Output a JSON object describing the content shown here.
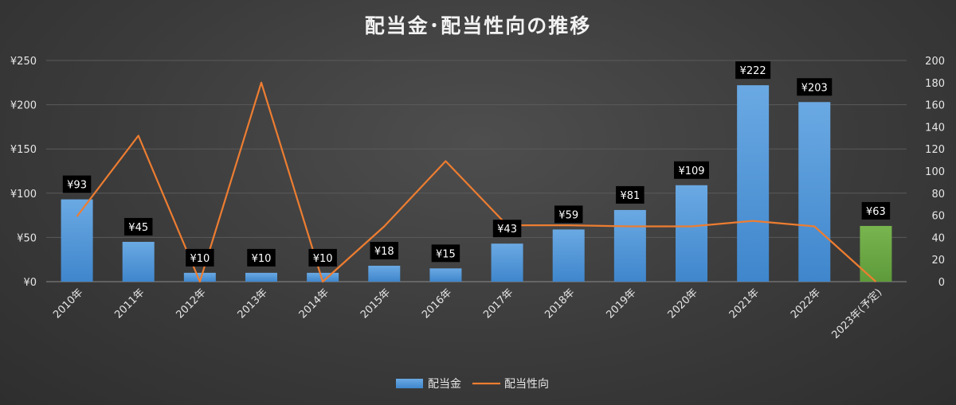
{
  "chart_data": {
    "type": "bar",
    "title": "配当金･配当性向の推移",
    "categories": [
      "2010年",
      "2011年",
      "2012年",
      "2013年",
      "2014年",
      "2015年",
      "2016年",
      "2017年",
      "2018年",
      "2019年",
      "2020年",
      "2021年",
      "2022年",
      "2023年(予定)"
    ],
    "series": [
      {
        "name": "配当金",
        "type": "bar",
        "axis": "left",
        "values": [
          93,
          45,
          10,
          10,
          10,
          18,
          15,
          43,
          59,
          81,
          109,
          222,
          203,
          63
        ],
        "data_labels": [
          "¥93",
          "¥45",
          "¥10",
          "¥10",
          "¥10",
          "¥18",
          "¥15",
          "¥43",
          "¥59",
          "¥81",
          "¥109",
          "¥222",
          "¥203",
          "¥63"
        ],
        "color": "#5b9bd5",
        "highlight_color": "#70ad47",
        "highlight_index": 13
      },
      {
        "name": "配当性向",
        "type": "line",
        "axis": "right",
        "values": [
          59,
          132,
          0,
          180,
          0,
          50,
          109,
          51,
          51,
          50,
          50,
          55,
          50,
          0
        ],
        "color": "#ed7d31"
      }
    ],
    "y_left": {
      "ylim": [
        0,
        250
      ],
      "ticks": [
        0,
        50,
        100,
        150,
        200,
        250
      ],
      "tick_labels": [
        "¥0",
        "¥50",
        "¥100",
        "¥150",
        "¥200",
        "¥250"
      ]
    },
    "y_right": {
      "ylim": [
        0,
        200
      ],
      "ticks": [
        0,
        20,
        40,
        60,
        80,
        100,
        120,
        140,
        160,
        180,
        200
      ],
      "tick_labels": [
        "0",
        "20",
        "40",
        "60",
        "80",
        "100",
        "120",
        "140",
        "160",
        "180",
        "200"
      ]
    },
    "grid": true,
    "legend": "bottom-center",
    "legend_entries": [
      "配当金",
      "配当性向"
    ]
  }
}
